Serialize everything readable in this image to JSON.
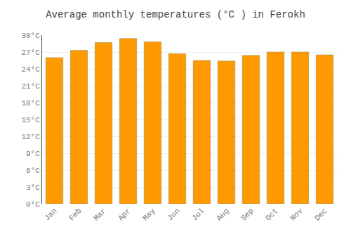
{
  "chart_data": {
    "type": "bar",
    "title": "Average monthly temperatures (°C ) in Ferokh",
    "categories": [
      "Jan",
      "Feb",
      "Mar",
      "Apr",
      "May",
      "Jun",
      "Jul",
      "Aug",
      "Sep",
      "Oct",
      "Nov",
      "Dec"
    ],
    "values": [
      26.0,
      27.3,
      28.7,
      29.4,
      28.8,
      26.7,
      25.5,
      25.4,
      26.4,
      27.0,
      27.0,
      26.5
    ],
    "color": "#FF9900",
    "ylim": [
      0,
      30
    ],
    "yticks": [
      {
        "value": 0,
        "label": "0°C"
      },
      {
        "value": 3,
        "label": "3°C"
      },
      {
        "value": 6,
        "label": "6°C"
      },
      {
        "value": 9,
        "label": "9°C"
      },
      {
        "value": 12,
        "label": "12°C"
      },
      {
        "value": 15,
        "label": "15°C"
      },
      {
        "value": 18,
        "label": "18°C"
      },
      {
        "value": 21,
        "label": "21°C"
      },
      {
        "value": 24,
        "label": "24°C"
      },
      {
        "value": 27,
        "label": "27°C"
      },
      {
        "value": 30,
        "label": "30°C"
      }
    ],
    "grid": true
  }
}
